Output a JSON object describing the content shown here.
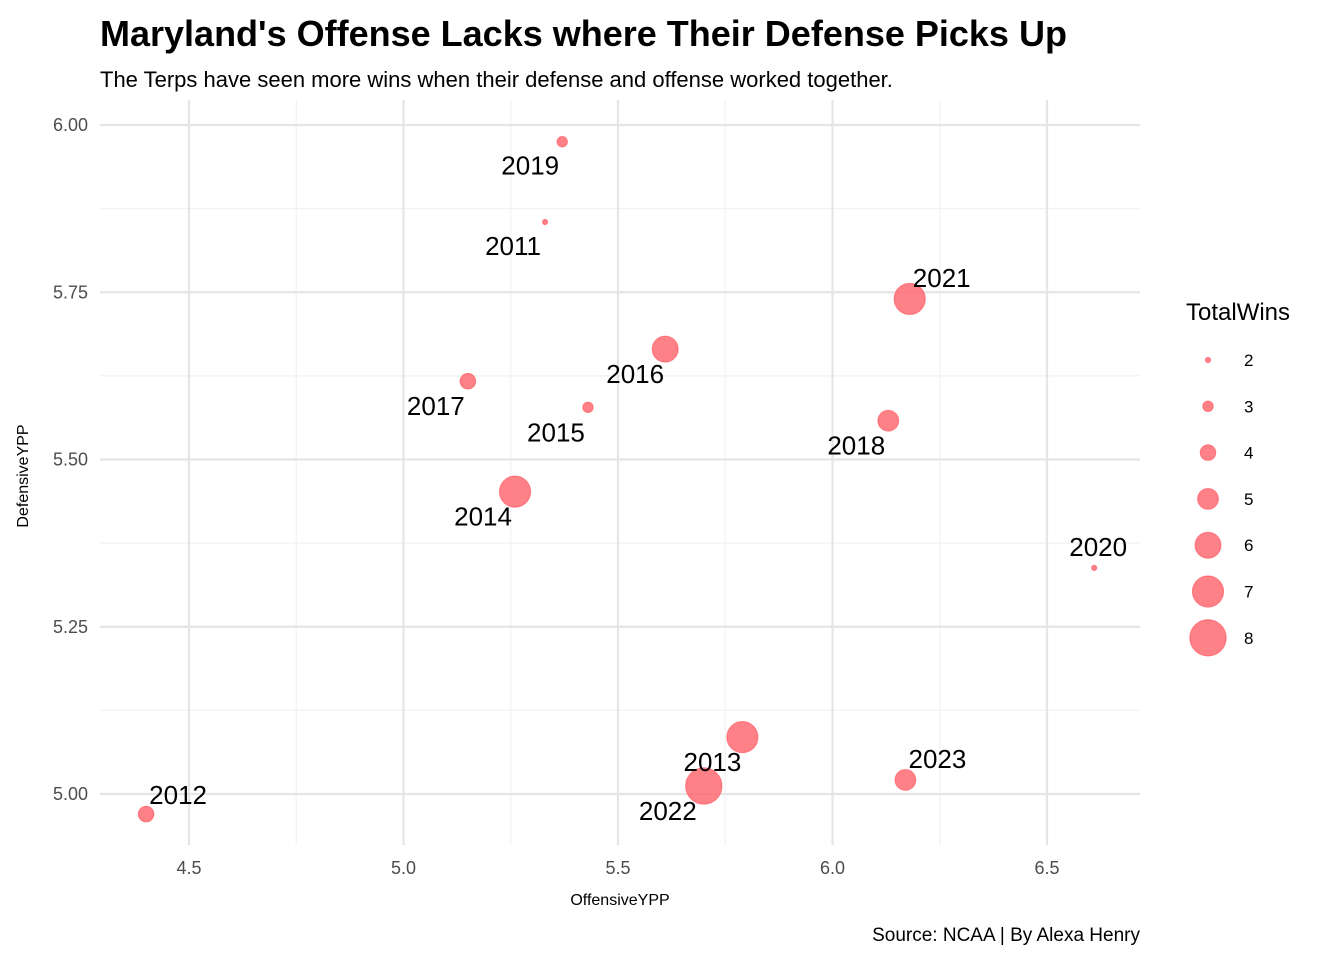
{
  "chart_data": {
    "type": "scatter",
    "title": "Maryland's Offense Lacks where Their Defense Picks Up",
    "subtitle": "The Terps have seen more wins when their defense and offense worked together.",
    "xlabel": "OffensiveYPP",
    "ylabel": "DefensiveYPP",
    "caption": "Source: NCAA | By Alexa Henry",
    "xlim": [
      4.4,
      6.62
    ],
    "ylim": [
      4.95,
      6.0
    ],
    "x_ticks": [
      "4.5",
      "5.0",
      "5.5",
      "6.0",
      "6.5"
    ],
    "y_ticks": [
      "5.00",
      "5.25",
      "5.50",
      "5.75",
      "6.00"
    ],
    "grid": true,
    "point_color": "#ff6b73",
    "legend": {
      "title": "TotalWins",
      "placement": "right",
      "values": [
        "2",
        "3",
        "4",
        "5",
        "6",
        "7",
        "8"
      ]
    },
    "points": [
      {
        "label": "2011",
        "x": 5.33,
        "y": 5.855,
        "wins": 2
      },
      {
        "label": "2012",
        "x": 4.4,
        "y": 4.97,
        "wins": 4
      },
      {
        "label": "2013",
        "x": 5.79,
        "y": 5.085,
        "wins": 7
      },
      {
        "label": "2014",
        "x": 5.26,
        "y": 5.452,
        "wins": 7
      },
      {
        "label": "2015",
        "x": 5.43,
        "y": 5.578,
        "wins": 3
      },
      {
        "label": "2016",
        "x": 5.61,
        "y": 5.665,
        "wins": 6
      },
      {
        "label": "2017",
        "x": 5.15,
        "y": 5.617,
        "wins": 4
      },
      {
        "label": "2018",
        "x": 6.13,
        "y": 5.558,
        "wins": 5
      },
      {
        "label": "2019",
        "x": 5.37,
        "y": 5.975,
        "wins": 3
      },
      {
        "label": "2020",
        "x": 6.61,
        "y": 5.338,
        "wins": 2
      },
      {
        "label": "2021",
        "x": 6.18,
        "y": 5.74,
        "wins": 7
      },
      {
        "label": "2022",
        "x": 5.7,
        "y": 5.012,
        "wins": 8
      },
      {
        "label": "2023",
        "x": 6.17,
        "y": 5.021,
        "wins": 5
      }
    ]
  }
}
